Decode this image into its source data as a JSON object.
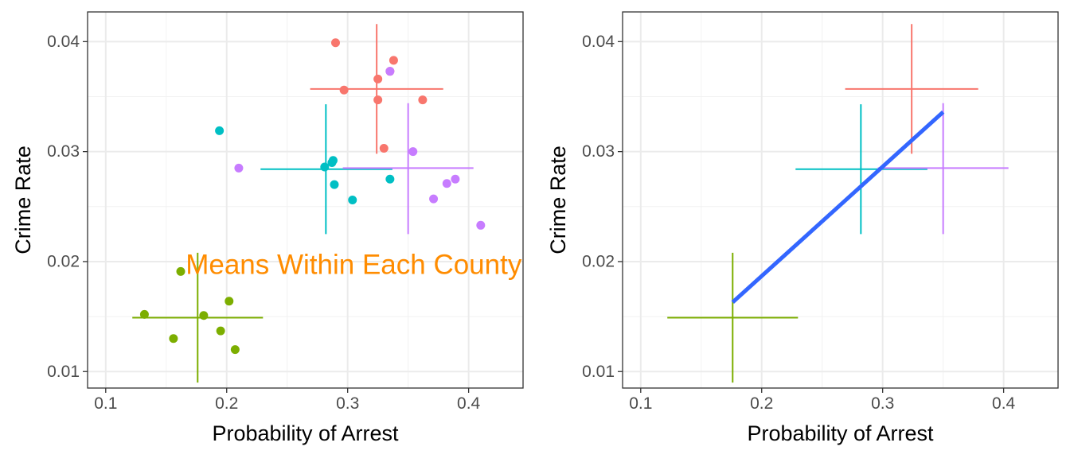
{
  "chart_data": [
    {
      "type": "scatter",
      "xlabel": "Probability of Arrest",
      "ylabel": "Crime Rate",
      "xlim": [
        0.085,
        0.445
      ],
      "ylim": [
        0.0085,
        0.0427
      ],
      "x_ticks": [
        0.1,
        0.2,
        0.3,
        0.4
      ],
      "x_tick_labels": [
        "0.1",
        "0.2",
        "0.3",
        "0.4"
      ],
      "y_ticks": [
        0.01,
        0.02,
        0.03,
        0.04
      ],
      "y_tick_labels": [
        "0.01",
        "0.02",
        "0.03",
        "0.04"
      ],
      "grid": true,
      "annotation": {
        "text": "Means Within Each County",
        "x": 0.305,
        "y": 0.0197,
        "color": "#FF8C00"
      },
      "series": [
        {
          "color": "#F8766D",
          "points": [
            [
              0.29,
              0.0399
            ],
            [
              0.338,
              0.0383
            ],
            [
              0.335,
              0.0373
            ],
            [
              0.325,
              0.0366
            ],
            [
              0.297,
              0.0356
            ],
            [
              0.325,
              0.0347
            ],
            [
              0.362,
              0.0347
            ],
            [
              0.33,
              0.0303
            ]
          ],
          "mean": {
            "x": 0.324,
            "y": 0.0357,
            "x_range": [
              0.269,
              0.379
            ],
            "y_range": [
              0.0298,
              0.0416
            ]
          }
        },
        {
          "color": "#7CAE00",
          "points": [
            [
              0.162,
              0.0191
            ],
            [
              0.202,
              0.0164
            ],
            [
              0.132,
              0.0152
            ],
            [
              0.181,
              0.0151
            ],
            [
              0.195,
              0.0137
            ],
            [
              0.156,
              0.013
            ],
            [
              0.207,
              0.012
            ]
          ],
          "mean": {
            "x": 0.176,
            "y": 0.0149,
            "x_range": [
              0.122,
              0.23
            ],
            "y_range": [
              0.009,
              0.0208
            ]
          }
        },
        {
          "color": "#00BFC4",
          "points": [
            [
              0.194,
              0.0319
            ],
            [
              0.288,
              0.0292
            ],
            [
              0.287,
              0.029
            ],
            [
              0.281,
              0.0286
            ],
            [
              0.335,
              0.0275
            ],
            [
              0.289,
              0.027
            ],
            [
              0.304,
              0.0256
            ]
          ],
          "mean": {
            "x": 0.282,
            "y": 0.0284,
            "x_range": [
              0.228,
              0.337
            ],
            "y_range": [
              0.0225,
              0.0343
            ]
          }
        },
        {
          "color": "#C77CFF",
          "points": [
            [
              0.335,
              0.0373
            ],
            [
              0.354,
              0.03
            ],
            [
              0.21,
              0.0285
            ],
            [
              0.389,
              0.0275
            ],
            [
              0.382,
              0.0271
            ],
            [
              0.371,
              0.0257
            ],
            [
              0.41,
              0.0233
            ]
          ],
          "mean": {
            "x": 0.35,
            "y": 0.0285,
            "x_range": [
              0.296,
              0.404
            ],
            "y_range": [
              0.0225,
              0.0344
            ]
          }
        }
      ]
    },
    {
      "type": "line",
      "xlabel": "Probability of Arrest",
      "ylabel": "Crime Rate",
      "xlim": [
        0.085,
        0.445
      ],
      "ylim": [
        0.0085,
        0.0427
      ],
      "x_ticks": [
        0.1,
        0.2,
        0.3,
        0.4
      ],
      "x_tick_labels": [
        "0.1",
        "0.2",
        "0.3",
        "0.4"
      ],
      "y_ticks": [
        0.01,
        0.02,
        0.03,
        0.04
      ],
      "y_tick_labels": [
        "0.01",
        "0.02",
        "0.03",
        "0.04"
      ],
      "grid": true,
      "fit_line": {
        "color": "#3366FF",
        "x": [
          0.176,
          0.35
        ],
        "y": [
          0.0163,
          0.0336
        ]
      },
      "series": [
        {
          "color": "#F8766D",
          "mean": {
            "x": 0.324,
            "y": 0.0357,
            "x_range": [
              0.269,
              0.379
            ],
            "y_range": [
              0.0298,
              0.0416
            ]
          }
        },
        {
          "color": "#7CAE00",
          "mean": {
            "x": 0.176,
            "y": 0.0149,
            "x_range": [
              0.122,
              0.23
            ],
            "y_range": [
              0.009,
              0.0208
            ]
          }
        },
        {
          "color": "#00BFC4",
          "mean": {
            "x": 0.282,
            "y": 0.0284,
            "x_range": [
              0.228,
              0.337
            ],
            "y_range": [
              0.0225,
              0.0343
            ]
          }
        },
        {
          "color": "#C77CFF",
          "mean": {
            "x": 0.35,
            "y": 0.0285,
            "x_range": [
              0.296,
              0.404
            ],
            "y_range": [
              0.0225,
              0.0344
            ]
          }
        }
      ]
    }
  ]
}
